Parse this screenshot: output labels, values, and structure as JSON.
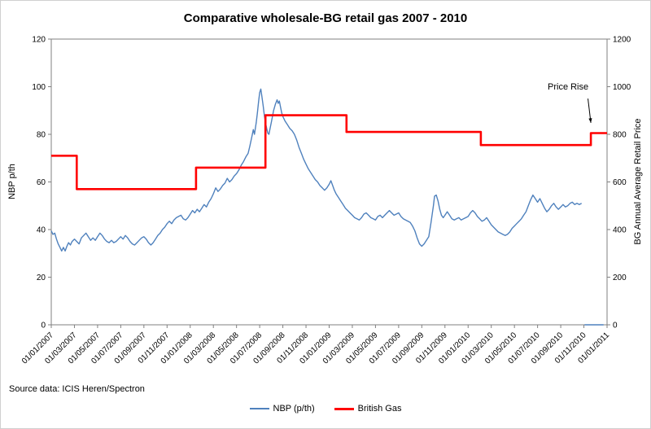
{
  "title": "Comparative wholesale-BG retail gas 2007 - 2010",
  "source_note": "Source data: ICIS Heren/Spectron",
  "annotation": "Price Rise",
  "colors": {
    "nbp": "#4F81BD",
    "british_gas": "#FF0000",
    "axis": "#808080",
    "text": "#000000"
  },
  "chart_data": {
    "type": "line",
    "title": "Comparative wholesale-BG retail gas 2007 - 2010",
    "grid": false,
    "legend_position": "bottom",
    "x_axis": {
      "months_span": 48,
      "tick_interval_months": 2,
      "tick_labels": [
        "01/01/2007",
        "01/03/2007",
        "01/05/2007",
        "01/07/2007",
        "01/09/2007",
        "01/11/2007",
        "01/01/2008",
        "01/03/2008",
        "01/05/2008",
        "01/07/2008",
        "01/09/2008",
        "01/11/2008",
        "01/01/2009",
        "01/03/2009",
        "01/05/2009",
        "01/07/2009",
        "01/09/2009",
        "01/11/2009",
        "01/01/2010",
        "01/03/2010",
        "01/05/2010",
        "01/07/2010",
        "01/09/2010",
        "01/11/2010",
        "01/01/2011"
      ]
    },
    "y_left": {
      "label": "NBP p/th",
      "min": 0,
      "max": 120,
      "step": 20
    },
    "y_right": {
      "label": "BG Annual Average Retail Price",
      "min": 0,
      "max": 1200,
      "step": 200
    },
    "annotation": {
      "text": "Price Rise",
      "arrow_from": [
        46.35,
        950
      ],
      "arrow_to": [
        46.6,
        848
      ]
    },
    "series": [
      {
        "name": "NBP (p/th)",
        "axis": "left",
        "color": "#4F81BD",
        "width": 1.4,
        "points": [
          [
            0,
            39.5
          ],
          [
            0.15,
            38
          ],
          [
            0.3,
            38.5
          ],
          [
            0.45,
            36
          ],
          [
            0.6,
            34
          ],
          [
            0.75,
            32.5
          ],
          [
            0.9,
            31
          ],
          [
            1.05,
            32.5
          ],
          [
            1.2,
            31
          ],
          [
            1.35,
            33
          ],
          [
            1.5,
            34.5
          ],
          [
            1.65,
            33.5
          ],
          [
            1.8,
            35
          ],
          [
            2,
            36
          ],
          [
            2.2,
            35
          ],
          [
            2.4,
            34
          ],
          [
            2.6,
            36.5
          ],
          [
            2.8,
            37.5
          ],
          [
            3,
            38.5
          ],
          [
            3.2,
            37
          ],
          [
            3.4,
            35.5
          ],
          [
            3.6,
            36.5
          ],
          [
            3.8,
            35.5
          ],
          [
            4,
            37
          ],
          [
            4.2,
            38.5
          ],
          [
            4.4,
            37.5
          ],
          [
            4.6,
            36
          ],
          [
            4.8,
            35
          ],
          [
            5,
            34.5
          ],
          [
            5.2,
            35.5
          ],
          [
            5.4,
            34.5
          ],
          [
            5.6,
            35
          ],
          [
            5.8,
            36
          ],
          [
            6,
            37
          ],
          [
            6.2,
            36
          ],
          [
            6.4,
            37.5
          ],
          [
            6.6,
            36.5
          ],
          [
            6.8,
            35
          ],
          [
            7,
            34
          ],
          [
            7.2,
            33.5
          ],
          [
            7.4,
            34.5
          ],
          [
            7.6,
            35.5
          ],
          [
            7.8,
            36.5
          ],
          [
            8,
            37
          ],
          [
            8.2,
            36
          ],
          [
            8.4,
            34.5
          ],
          [
            8.6,
            33.5
          ],
          [
            8.8,
            34.5
          ],
          [
            9,
            36
          ],
          [
            9.2,
            37.5
          ],
          [
            9.4,
            38.5
          ],
          [
            9.6,
            40
          ],
          [
            9.8,
            41
          ],
          [
            10,
            42.5
          ],
          [
            10.2,
            43.5
          ],
          [
            10.4,
            42.5
          ],
          [
            10.6,
            44
          ],
          [
            10.8,
            45
          ],
          [
            11,
            45.5
          ],
          [
            11.2,
            46
          ],
          [
            11.4,
            44.5
          ],
          [
            11.6,
            44
          ],
          [
            11.8,
            45
          ],
          [
            12,
            46.5
          ],
          [
            12.2,
            48
          ],
          [
            12.4,
            47
          ],
          [
            12.6,
            48.5
          ],
          [
            12.8,
            47.5
          ],
          [
            13,
            49
          ],
          [
            13.2,
            50.5
          ],
          [
            13.4,
            49.5
          ],
          [
            13.6,
            51.5
          ],
          [
            13.8,
            53
          ],
          [
            14,
            55
          ],
          [
            14.2,
            57.5
          ],
          [
            14.4,
            56
          ],
          [
            14.6,
            57
          ],
          [
            14.8,
            58.5
          ],
          [
            15,
            59.5
          ],
          [
            15.2,
            61.5
          ],
          [
            15.4,
            60
          ],
          [
            15.6,
            61
          ],
          [
            15.8,
            62.5
          ],
          [
            16,
            63.5
          ],
          [
            16.2,
            65
          ],
          [
            16.4,
            67
          ],
          [
            16.6,
            68.5
          ],
          [
            16.8,
            70.5
          ],
          [
            17,
            72
          ],
          [
            17.15,
            75
          ],
          [
            17.3,
            78.5
          ],
          [
            17.45,
            82
          ],
          [
            17.55,
            80
          ],
          [
            17.7,
            85
          ],
          [
            17.8,
            89
          ],
          [
            17.9,
            93.5
          ],
          [
            18,
            97.5
          ],
          [
            18.1,
            99
          ],
          [
            18.2,
            95.5
          ],
          [
            18.3,
            92
          ],
          [
            18.4,
            88
          ],
          [
            18.5,
            85
          ],
          [
            18.6,
            82.5
          ],
          [
            18.7,
            80.5
          ],
          [
            18.8,
            80
          ],
          [
            18.9,
            82.5
          ],
          [
            19,
            85
          ],
          [
            19.1,
            87.5
          ],
          [
            19.2,
            90
          ],
          [
            19.35,
            92.5
          ],
          [
            19.5,
            94.5
          ],
          [
            19.6,
            93
          ],
          [
            19.7,
            94
          ],
          [
            19.8,
            91.5
          ],
          [
            19.9,
            89
          ],
          [
            20,
            87.5
          ],
          [
            20.2,
            85.5
          ],
          [
            20.4,
            84
          ],
          [
            20.6,
            82.5
          ],
          [
            20.8,
            81.5
          ],
          [
            21,
            80
          ],
          [
            21.2,
            77.5
          ],
          [
            21.4,
            74.5
          ],
          [
            21.6,
            72
          ],
          [
            21.8,
            69.5
          ],
          [
            22,
            67.5
          ],
          [
            22.2,
            65.5
          ],
          [
            22.4,
            64
          ],
          [
            22.6,
            62.5
          ],
          [
            22.8,
            61
          ],
          [
            23,
            60
          ],
          [
            23.2,
            58.5
          ],
          [
            23.4,
            57.5
          ],
          [
            23.6,
            56.5
          ],
          [
            23.8,
            57.5
          ],
          [
            24,
            59
          ],
          [
            24.15,
            60.5
          ],
          [
            24.3,
            58.5
          ],
          [
            24.45,
            56.5
          ],
          [
            24.6,
            55
          ],
          [
            24.8,
            53.5
          ],
          [
            25,
            52
          ],
          [
            25.2,
            50.5
          ],
          [
            25.4,
            49
          ],
          [
            25.6,
            48
          ],
          [
            25.8,
            47
          ],
          [
            26,
            46
          ],
          [
            26.2,
            45
          ],
          [
            26.4,
            44.5
          ],
          [
            26.6,
            44
          ],
          [
            26.8,
            45
          ],
          [
            27,
            46.5
          ],
          [
            27.2,
            47
          ],
          [
            27.4,
            46
          ],
          [
            27.6,
            45
          ],
          [
            27.8,
            44.5
          ],
          [
            28,
            44
          ],
          [
            28.2,
            45.5
          ],
          [
            28.4,
            46
          ],
          [
            28.6,
            45
          ],
          [
            28.8,
            46
          ],
          [
            29,
            47
          ],
          [
            29.2,
            48
          ],
          [
            29.4,
            47
          ],
          [
            29.6,
            46
          ],
          [
            29.8,
            46.5
          ],
          [
            30,
            47
          ],
          [
            30.2,
            45.5
          ],
          [
            30.4,
            44.5
          ],
          [
            30.6,
            44
          ],
          [
            30.8,
            43.5
          ],
          [
            31,
            43
          ],
          [
            31.2,
            41.5
          ],
          [
            31.4,
            39.5
          ],
          [
            31.6,
            36.5
          ],
          [
            31.8,
            34
          ],
          [
            32,
            33
          ],
          [
            32.2,
            34
          ],
          [
            32.4,
            35.5
          ],
          [
            32.6,
            37
          ],
          [
            32.8,
            43
          ],
          [
            33,
            50
          ],
          [
            33.1,
            54
          ],
          [
            33.25,
            54.5
          ],
          [
            33.4,
            52
          ],
          [
            33.55,
            48.5
          ],
          [
            33.7,
            46
          ],
          [
            33.85,
            45
          ],
          [
            34,
            46
          ],
          [
            34.2,
            47.5
          ],
          [
            34.4,
            46
          ],
          [
            34.6,
            44.5
          ],
          [
            34.8,
            44
          ],
          [
            35,
            44.5
          ],
          [
            35.2,
            45
          ],
          [
            35.4,
            44
          ],
          [
            35.6,
            44.5
          ],
          [
            35.8,
            45
          ],
          [
            36,
            45.5
          ],
          [
            36.2,
            47
          ],
          [
            36.4,
            48
          ],
          [
            36.6,
            47
          ],
          [
            36.8,
            45.5
          ],
          [
            37,
            44.5
          ],
          [
            37.2,
            43.5
          ],
          [
            37.4,
            44
          ],
          [
            37.6,
            45
          ],
          [
            37.8,
            43.5
          ],
          [
            38,
            42
          ],
          [
            38.2,
            41
          ],
          [
            38.4,
            40
          ],
          [
            38.6,
            39
          ],
          [
            38.8,
            38.5
          ],
          [
            39,
            38
          ],
          [
            39.2,
            37.5
          ],
          [
            39.4,
            38
          ],
          [
            39.6,
            39
          ],
          [
            39.8,
            40.5
          ],
          [
            40,
            41.5
          ],
          [
            40.2,
            42.5
          ],
          [
            40.4,
            43.5
          ],
          [
            40.6,
            44.5
          ],
          [
            40.8,
            46
          ],
          [
            41,
            47.5
          ],
          [
            41.2,
            50
          ],
          [
            41.4,
            52.5
          ],
          [
            41.6,
            54.5
          ],
          [
            41.8,
            53
          ],
          [
            42,
            51.5
          ],
          [
            42.2,
            53
          ],
          [
            42.4,
            51
          ],
          [
            42.6,
            49
          ],
          [
            42.8,
            47.5
          ],
          [
            43,
            48.5
          ],
          [
            43.2,
            50
          ],
          [
            43.4,
            51
          ],
          [
            43.6,
            49.5
          ],
          [
            43.8,
            48.5
          ],
          [
            44,
            49.5
          ],
          [
            44.2,
            50.5
          ],
          [
            44.4,
            49.5
          ],
          [
            44.6,
            50
          ],
          [
            44.8,
            51
          ],
          [
            45,
            51.5
          ],
          [
            45.2,
            50.5
          ],
          [
            45.4,
            51
          ],
          [
            45.6,
            50.5
          ],
          [
            45.8,
            51
          ]
        ],
        "tail_zero": [
          [
            46.05,
            0
          ],
          [
            47.7,
            0
          ]
        ]
      },
      {
        "name": "British Gas",
        "axis": "right",
        "color": "#FF0000",
        "width": 2.6,
        "type": "step",
        "steps": [
          [
            0,
            710
          ],
          [
            2.2,
            570
          ],
          [
            12.5,
            660
          ],
          [
            18.5,
            880
          ],
          [
            25.5,
            810
          ],
          [
            37.1,
            755
          ],
          [
            46.6,
            805
          ]
        ],
        "t_end": 48
      }
    ]
  }
}
